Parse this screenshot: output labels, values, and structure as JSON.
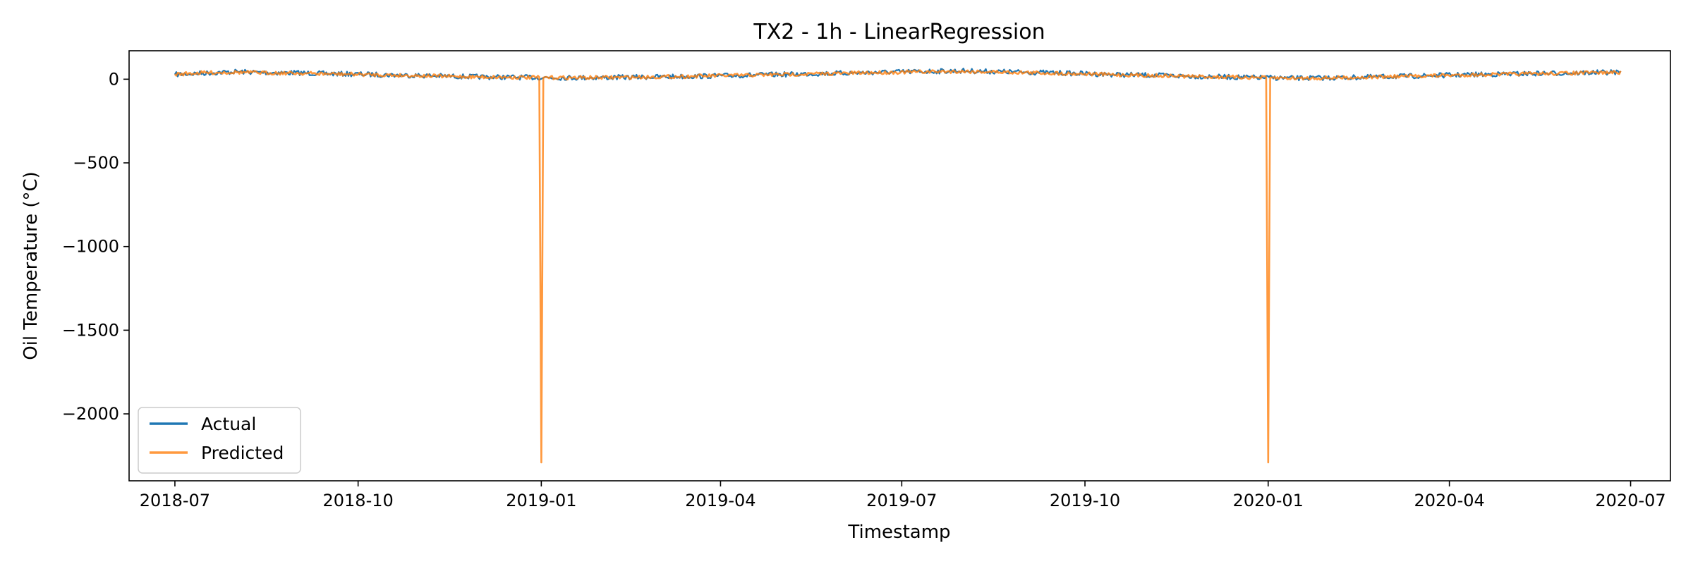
{
  "chart_data": {
    "type": "line",
    "title": "TX2 - 1h - LinearRegression",
    "xlabel": "Timestamp",
    "ylabel": "Oil Temperature (°C)",
    "x_range": [
      "2018-06-08",
      "2020-07-21"
    ],
    "ylim": [
      -2400,
      170
    ],
    "x_ticks": [
      "2018-07",
      "2018-10",
      "2019-01",
      "2019-04",
      "2019-07",
      "2019-10",
      "2020-01",
      "2020-04",
      "2020-07"
    ],
    "y_ticks": [
      0,
      -500,
      -1000,
      -1500,
      -2000
    ],
    "y_tick_labels": [
      "0",
      "−500",
      "−1000",
      "−1500",
      "−2000"
    ],
    "grid": false,
    "legend": {
      "position": "lower-left"
    },
    "series": [
      {
        "name": "Actual",
        "color": "#1f77b4",
        "points": [
          [
            "2018-07-01",
            28
          ],
          [
            "2018-07-15",
            36
          ],
          [
            "2018-08-01",
            45
          ],
          [
            "2018-08-15",
            40
          ],
          [
            "2018-09-01",
            38
          ],
          [
            "2018-09-15",
            33
          ],
          [
            "2018-10-01",
            30
          ],
          [
            "2018-10-15",
            26
          ],
          [
            "2018-11-01",
            22
          ],
          [
            "2018-11-15",
            18
          ],
          [
            "2018-12-01",
            14
          ],
          [
            "2018-12-15",
            12
          ],
          [
            "2018-12-31",
            10
          ],
          [
            "2019-01-15",
            9
          ],
          [
            "2019-02-01",
            10
          ],
          [
            "2019-02-15",
            12
          ],
          [
            "2019-03-01",
            14
          ],
          [
            "2019-03-15",
            17
          ],
          [
            "2019-04-01",
            20
          ],
          [
            "2019-04-15",
            24
          ],
          [
            "2019-05-01",
            28
          ],
          [
            "2019-05-15",
            32
          ],
          [
            "2019-06-01",
            36
          ],
          [
            "2019-06-15",
            40
          ],
          [
            "2019-07-01",
            44
          ],
          [
            "2019-07-15",
            47
          ],
          [
            "2019-08-01",
            50
          ],
          [
            "2019-08-15",
            46
          ],
          [
            "2019-09-01",
            42
          ],
          [
            "2019-09-15",
            38
          ],
          [
            "2019-10-01",
            33
          ],
          [
            "2019-10-15",
            28
          ],
          [
            "2019-11-01",
            24
          ],
          [
            "2019-11-15",
            20
          ],
          [
            "2019-12-01",
            16
          ],
          [
            "2019-12-15",
            12
          ],
          [
            "2019-12-31",
            9
          ],
          [
            "2020-01-15",
            6
          ],
          [
            "2020-02-01",
            8
          ],
          [
            "2020-02-15",
            11
          ],
          [
            "2020-03-01",
            15
          ],
          [
            "2020-03-15",
            19
          ],
          [
            "2020-04-01",
            24
          ],
          [
            "2020-04-15",
            28
          ],
          [
            "2020-05-01",
            31
          ],
          [
            "2020-05-15",
            34
          ],
          [
            "2020-06-01",
            37
          ],
          [
            "2020-06-15",
            40
          ],
          [
            "2020-06-26",
            42
          ]
        ]
      },
      {
        "name": "Predicted",
        "color": "#ff7f0e",
        "points": [
          [
            "2018-07-01",
            30
          ],
          [
            "2018-07-15",
            38
          ],
          [
            "2018-08-01",
            42
          ],
          [
            "2018-08-15",
            38
          ],
          [
            "2018-09-01",
            36
          ],
          [
            "2018-09-15",
            32
          ],
          [
            "2018-10-01",
            29
          ],
          [
            "2018-10-15",
            25
          ],
          [
            "2018-11-01",
            21
          ],
          [
            "2018-11-15",
            17
          ],
          [
            "2018-12-01",
            14
          ],
          [
            "2018-12-15",
            12
          ],
          [
            "2018-12-31",
            10
          ],
          [
            "2019-01-01",
            -2290
          ],
          [
            "2019-01-02",
            10
          ],
          [
            "2019-01-15",
            9
          ],
          [
            "2019-02-01",
            10
          ],
          [
            "2019-02-15",
            12
          ],
          [
            "2019-03-01",
            14
          ],
          [
            "2019-03-15",
            17
          ],
          [
            "2019-04-01",
            21
          ],
          [
            "2019-04-15",
            24
          ],
          [
            "2019-05-01",
            28
          ],
          [
            "2019-05-15",
            31
          ],
          [
            "2019-06-01",
            35
          ],
          [
            "2019-06-15",
            39
          ],
          [
            "2019-07-01",
            42
          ],
          [
            "2019-07-15",
            45
          ],
          [
            "2019-08-01",
            47
          ],
          [
            "2019-08-15",
            44
          ],
          [
            "2019-09-01",
            40
          ],
          [
            "2019-09-15",
            36
          ],
          [
            "2019-10-01",
            32
          ],
          [
            "2019-10-15",
            27
          ],
          [
            "2019-11-01",
            23
          ],
          [
            "2019-11-15",
            19
          ],
          [
            "2019-12-01",
            15
          ],
          [
            "2019-12-15",
            12
          ],
          [
            "2019-12-31",
            9
          ],
          [
            "2020-01-01",
            -2290
          ],
          [
            "2020-01-02",
            8
          ],
          [
            "2020-01-15",
            6
          ],
          [
            "2020-02-01",
            8
          ],
          [
            "2020-02-15",
            11
          ],
          [
            "2020-03-01",
            15
          ],
          [
            "2020-03-15",
            19
          ],
          [
            "2020-04-01",
            23
          ],
          [
            "2020-04-15",
            27
          ],
          [
            "2020-05-01",
            30
          ],
          [
            "2020-05-15",
            33
          ],
          [
            "2020-06-01",
            36
          ],
          [
            "2020-06-15",
            39
          ],
          [
            "2020-06-26",
            41
          ]
        ]
      }
    ]
  }
}
